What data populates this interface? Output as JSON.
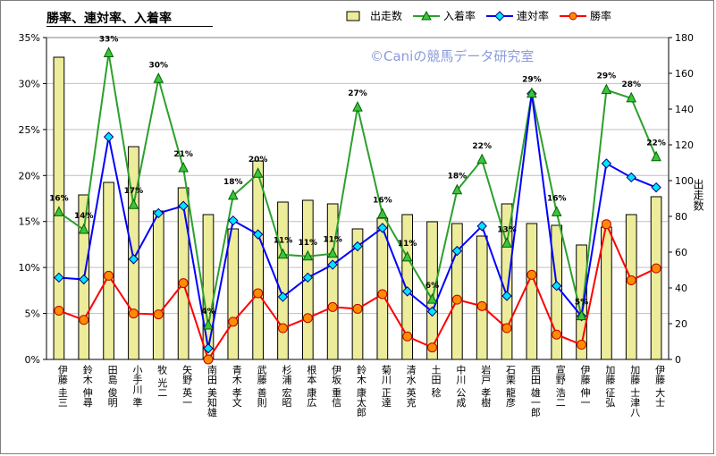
{
  "title": "勝率、連対率、入着率",
  "watermark": "©Caniの競馬データ研究室",
  "chart_data": {
    "type": "bar",
    "categories": [
      "伊藤 圭三",
      "鈴木 伸尋",
      "田島 俊明",
      "小手川 準",
      "牧 光二",
      "矢野 英一",
      "南田 美知雄",
      "青木 孝文",
      "武藤 善則",
      "杉浦 宏昭",
      "根本 康広",
      "伊坂 重信",
      "鈴木 康太郎",
      "菊川 正達",
      "清水 英克",
      "土田 稔",
      "中川 公成",
      "岩戸 孝樹",
      "石栗 龍彦",
      "西田 雄一郎",
      "宣野 浩二",
      "伊藤 伸一",
      "加藤 征弘",
      "加藤 士津八",
      "伊藤 大士"
    ],
    "y1lim": [
      0,
      35
    ],
    "y1ticks": [
      "0%",
      "5%",
      "10%",
      "15%",
      "20%",
      "25%",
      "30%",
      "35%"
    ],
    "y2lim": [
      0,
      180
    ],
    "y2ticks": [
      "0",
      "20",
      "40",
      "60",
      "80",
      "100",
      "120",
      "140",
      "160",
      "180"
    ],
    "y2label": "出走数",
    "bar_series": {
      "name": "出走数",
      "color": "#ecec9a",
      "values": [
        169,
        92,
        99,
        119,
        83,
        96,
        81,
        73,
        111,
        88,
        89,
        87,
        73,
        79,
        81,
        77,
        76,
        69,
        87,
        76,
        75,
        64,
        74,
        81,
        91
      ]
    },
    "series": [
      {
        "name": "入着率",
        "color": "#2ca02c",
        "marker": "triangle",
        "values": [
          16.0,
          14.1,
          33.3,
          16.8,
          30.5,
          20.8,
          3.7,
          17.8,
          20.2,
          11.4,
          11.2,
          11.5,
          27.4,
          15.8,
          11.1,
          6.5,
          18.4,
          21.7,
          12.6,
          28.9,
          16.0,
          4.7,
          29.3,
          28.4,
          22.0
        ],
        "point_labels": [
          "16%",
          "14%",
          "33%",
          "17%",
          "30%",
          "21%",
          "4%",
          "18%",
          "20%",
          "11%",
          "11%",
          "11%",
          "27%",
          "16%",
          "11%",
          "6%",
          "18%",
          "22%",
          "13%",
          "29%",
          "16%",
          "5%",
          "29%",
          "28%",
          "22%"
        ]
      },
      {
        "name": "連対率",
        "color": "#0000ff",
        "marker": "diamond",
        "values": [
          8.9,
          8.7,
          24.2,
          10.9,
          15.9,
          16.7,
          1.2,
          15.1,
          13.6,
          6.8,
          8.9,
          10.3,
          12.3,
          14.3,
          7.4,
          5.2,
          11.8,
          14.5,
          6.9,
          28.9,
          8.0,
          4.7,
          21.3,
          19.8,
          18.7
        ]
      },
      {
        "name": "勝率",
        "color": "#ff0000",
        "marker": "circle",
        "values": [
          5.3,
          4.3,
          9.1,
          5.0,
          4.9,
          8.3,
          0.0,
          4.1,
          7.2,
          3.4,
          4.5,
          5.7,
          5.5,
          7.1,
          2.5,
          1.3,
          6.5,
          5.8,
          3.4,
          9.2,
          2.7,
          1.6,
          14.7,
          8.6,
          9.9
        ]
      }
    ],
    "legend_position": "top"
  }
}
